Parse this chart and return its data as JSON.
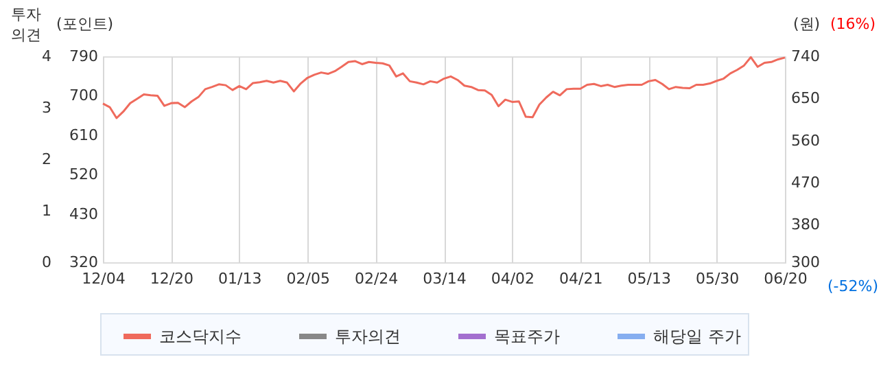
{
  "chart_data": {
    "type": "line",
    "categories": [
      "12/04",
      null,
      null,
      null,
      null,
      null,
      null,
      null,
      null,
      null,
      "12/20",
      null,
      null,
      null,
      null,
      null,
      null,
      null,
      null,
      null,
      "01/13",
      null,
      null,
      null,
      null,
      null,
      null,
      null,
      null,
      null,
      "02/05",
      null,
      null,
      null,
      null,
      null,
      null,
      null,
      null,
      null,
      "02/24",
      null,
      null,
      null,
      null,
      null,
      null,
      null,
      null,
      null,
      "03/14",
      null,
      null,
      null,
      null,
      null,
      null,
      null,
      null,
      null,
      "04/02",
      null,
      null,
      null,
      null,
      null,
      null,
      null,
      null,
      null,
      "04/21",
      null,
      null,
      null,
      null,
      null,
      null,
      null,
      null,
      null,
      "05/13",
      null,
      null,
      null,
      null,
      null,
      null,
      null,
      null,
      null,
      "05/30",
      null,
      null,
      null,
      null,
      null,
      null,
      null,
      null,
      null,
      "06/20"
    ],
    "series": [
      {
        "name": "코스닥지수",
        "color": "#ef6a5c",
        "axis": "y",
        "values": [
          682,
          674,
          649,
          664,
          683,
          693,
          703,
          701,
          700,
          677,
          683,
          684,
          674,
          687,
          697,
          715,
          720,
          726,
          724,
          713,
          722,
          715,
          729,
          731,
          734,
          730,
          734,
          730,
          710,
          728,
          741,
          748,
          753,
          750,
          756,
          766,
          777,
          779,
          772,
          777,
          775,
          774,
          769,
          744,
          751,
          733,
          730,
          726,
          733,
          730,
          739,
          744,
          736,
          723,
          720,
          713,
          712,
          702,
          676,
          691,
          686,
          687,
          652,
          651,
          680,
          696,
          709,
          701,
          715,
          716,
          716,
          725,
          727,
          722,
          725,
          720,
          723,
          725,
          725,
          725,
          733,
          736,
          727,
          715,
          720,
          718,
          717,
          725,
          725,
          728,
          734,
          739,
          751,
          759,
          769,
          788,
          766,
          775,
          777,
          783,
          787
        ]
      },
      {
        "name": "투자의견",
        "color": "#888888",
        "axis": "y3",
        "values": [
          null,
          null,
          null,
          null,
          null,
          null,
          null,
          null,
          null,
          null,
          null,
          null,
          null,
          null,
          null,
          null,
          null,
          null,
          null,
          null,
          null,
          null,
          null,
          null,
          null,
          null,
          null,
          null,
          null,
          null,
          null,
          null,
          null,
          null,
          null,
          null,
          null,
          null,
          null,
          null,
          null,
          null,
          null,
          null,
          null,
          null,
          null,
          null,
          null,
          null,
          null,
          null,
          null,
          null,
          null,
          null,
          null,
          null,
          null,
          null,
          null,
          null,
          null,
          null,
          null,
          null,
          null,
          null,
          null,
          null,
          null,
          null,
          null,
          null,
          null,
          null,
          null,
          null,
          null,
          null,
          null,
          null,
          null,
          null,
          null,
          null,
          null,
          null,
          null,
          null,
          null,
          null,
          null,
          null,
          null,
          null,
          null,
          null,
          null,
          null,
          null
        ]
      },
      {
        "name": "목표주가",
        "color": "#a36fcf",
        "axis": "y2",
        "values": [
          null,
          null,
          null,
          null,
          null,
          null,
          null,
          null,
          null,
          null,
          null,
          null,
          null,
          null,
          null,
          null,
          null,
          null,
          null,
          null,
          null,
          null,
          null,
          null,
          null,
          null,
          null,
          null,
          null,
          null,
          null,
          null,
          null,
          null,
          null,
          null,
          null,
          null,
          null,
          null,
          null,
          null,
          null,
          null,
          null,
          null,
          null,
          null,
          null,
          null,
          null,
          null,
          null,
          null,
          null,
          null,
          null,
          null,
          null,
          null,
          null,
          null,
          null,
          null,
          null,
          null,
          null,
          null,
          null,
          null,
          null,
          null,
          null,
          null,
          null,
          null,
          null,
          null,
          null,
          null,
          null,
          null,
          null,
          null,
          null,
          null,
          null,
          null,
          null,
          null,
          null,
          null,
          null,
          null,
          null,
          null,
          null,
          null,
          null,
          null,
          null
        ]
      },
      {
        "name": "해당일 주가",
        "color": "#86aef0",
        "axis": "y2",
        "values": [
          null,
          null,
          null,
          null,
          null,
          null,
          null,
          null,
          null,
          null,
          null,
          null,
          null,
          null,
          null,
          null,
          null,
          null,
          null,
          null,
          null,
          null,
          null,
          null,
          null,
          null,
          null,
          null,
          null,
          null,
          null,
          null,
          null,
          null,
          null,
          null,
          null,
          null,
          null,
          null,
          null,
          null,
          null,
          null,
          null,
          null,
          null,
          null,
          null,
          null,
          null,
          null,
          null,
          null,
          null,
          null,
          null,
          null,
          null,
          null,
          null,
          null,
          null,
          null,
          null,
          null,
          null,
          null,
          null,
          null,
          null,
          null,
          null,
          null,
          null,
          null,
          null,
          null,
          null,
          null,
          null,
          null,
          null,
          null,
          null,
          null,
          null,
          null,
          null,
          null,
          null,
          null,
          null,
          null,
          null,
          null,
          null,
          null,
          null,
          null,
          null
        ]
      }
    ],
    "ylabel": "(포인트)",
    "ylim": [
      320,
      790
    ],
    "yticks": [
      320,
      430,
      520,
      610,
      700,
      790
    ],
    "y2label": "(원)",
    "y2lim": [
      300,
      740
    ],
    "y2ticks": [
      300,
      380,
      470,
      560,
      650,
      740
    ],
    "y3label": "투자의견",
    "y3lim": [
      0,
      4
    ],
    "y3ticks": [
      0,
      1,
      2,
      3,
      4
    ],
    "annotations": [
      "(16%)",
      "(-52%)"
    ],
    "grid": "x",
    "legend": "bottom"
  }
}
